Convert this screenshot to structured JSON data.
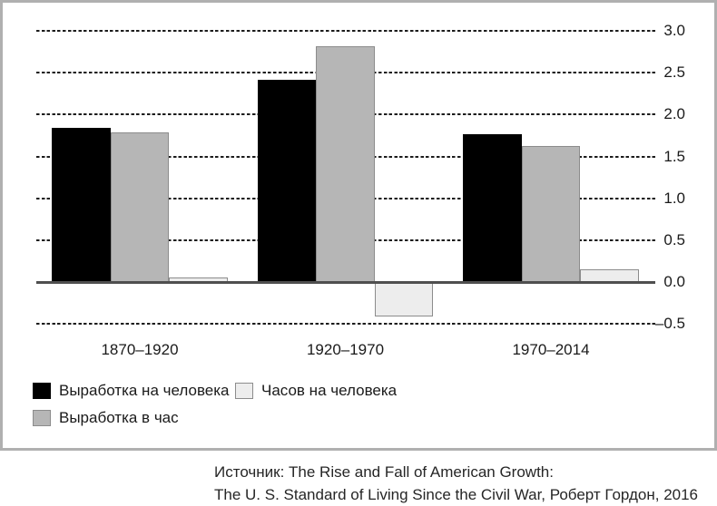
{
  "chart_data": {
    "type": "bar",
    "title": "",
    "xlabel": "",
    "ylabel": "",
    "categories": [
      "1870–1920",
      "1920–1970",
      "1970–2014"
    ],
    "series": [
      {
        "name": "Выработка на человека",
        "values": [
          1.84,
          2.41,
          1.77
        ],
        "fill": "#000000",
        "border": "#000000"
      },
      {
        "name": "Выработка в час",
        "values": [
          1.79,
          2.82,
          1.62
        ],
        "fill": "#b6b6b6",
        "border": "#8c8c8c"
      },
      {
        "name": "Часов на человека",
        "values": [
          0.05,
          -0.41,
          0.15
        ],
        "fill": "#ededed",
        "border": "#8c8c8c"
      }
    ],
    "ylim": [
      -0.5,
      3.0
    ],
    "yticks": [
      {
        "value": 3.0,
        "label": "3.0"
      },
      {
        "value": 2.5,
        "label": "2.5"
      },
      {
        "value": 2.0,
        "label": "2.0"
      },
      {
        "value": 1.5,
        "label": "1.5"
      },
      {
        "value": 1.0,
        "label": "1.0"
      },
      {
        "value": 0.5,
        "label": "0.5"
      },
      {
        "value": 0.0,
        "label": "0.0"
      },
      {
        "value": -0.5,
        "label": "–0.5"
      }
    ],
    "grid": "horizontal-dashed",
    "legend_position": "bottom-left",
    "legend_order": [
      0,
      2,
      1
    ]
  },
  "source": {
    "line1": "Источник: The Rise and Fall of American Growth:",
    "line2": "The U. S. Standard of Living Since the Civil War, Роберт Гордон, 2016"
  },
  "colors": {
    "gridline": "#1c1c1c",
    "axis_line": "#4f4f4f",
    "frame_border": "#b0b0b0",
    "text": "#1a1a1a"
  }
}
